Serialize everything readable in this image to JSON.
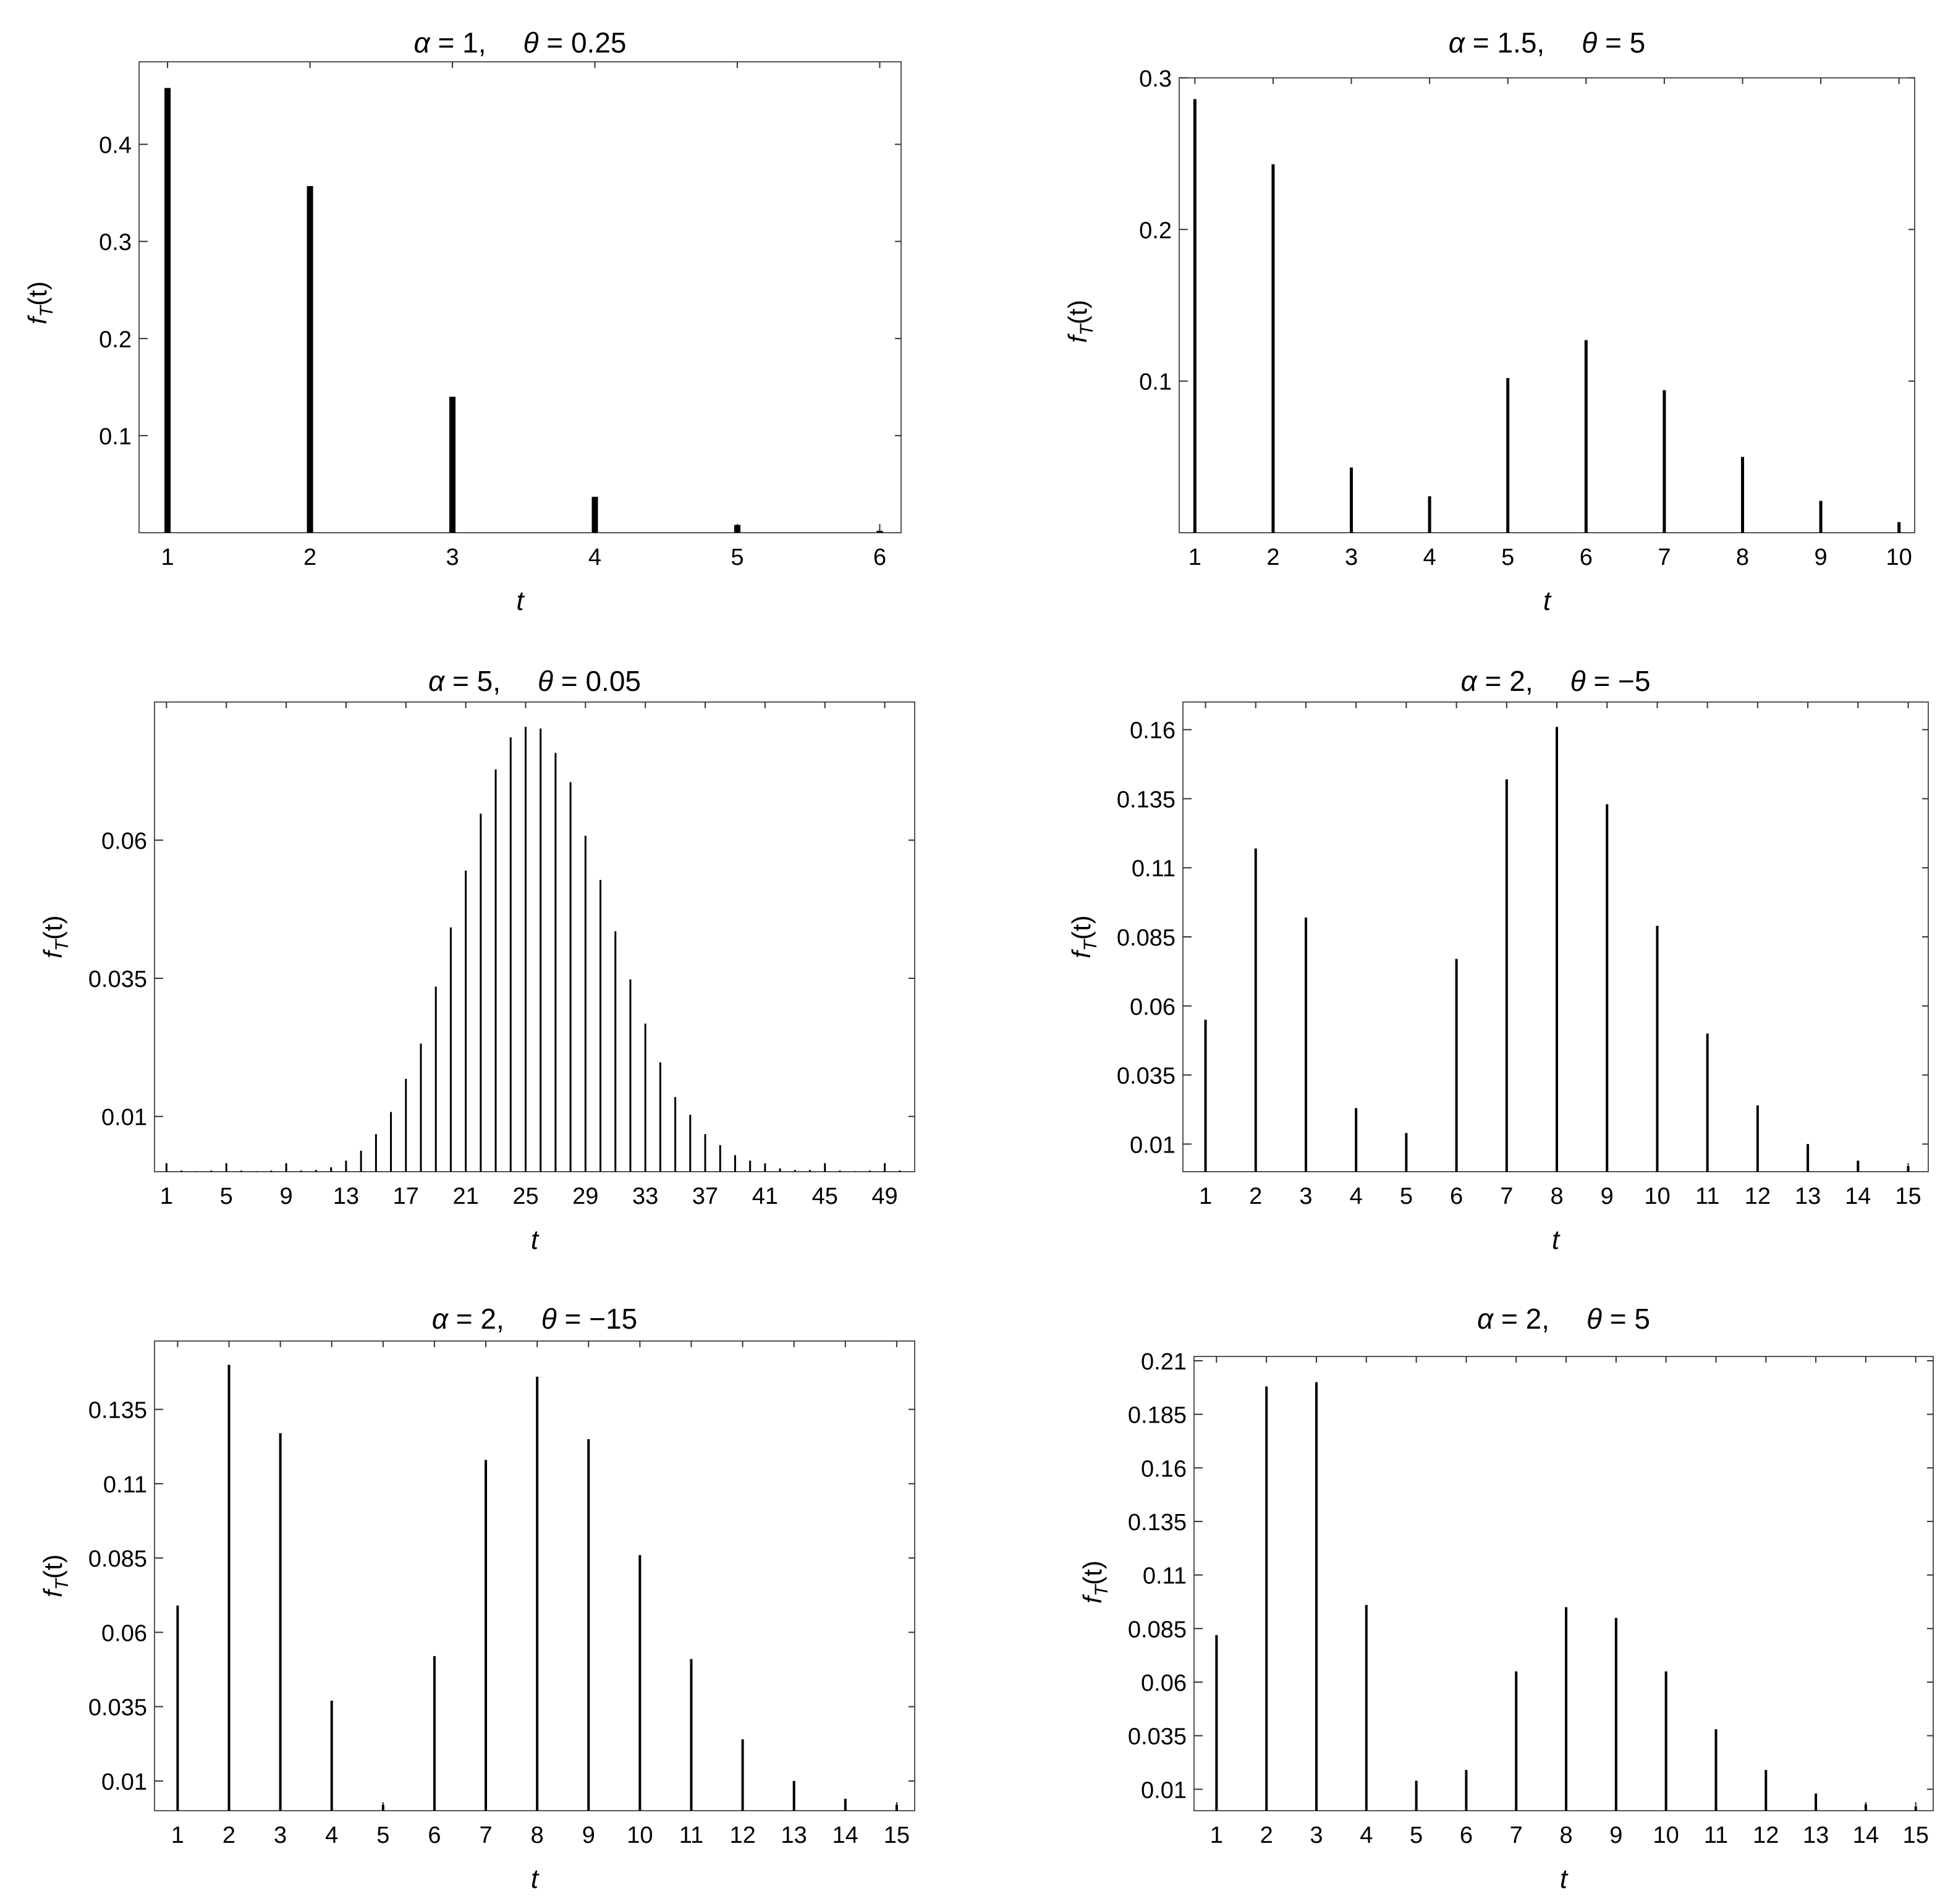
{
  "chart_data": [
    {
      "type": "bar",
      "title_alpha": "1",
      "title_theta": "0.25",
      "xlabel": "t",
      "ylabel_main": "f",
      "ylabel_sub": "T",
      "ylabel_arg": "(t)",
      "xlim": [
        0.8,
        6.15
      ],
      "ylim": [
        0,
        0.485
      ],
      "yticks": [
        0.1,
        0.2,
        0.3,
        0.4
      ],
      "ytick_labels": [
        "0.1",
        "0.2",
        "0.3",
        "0.4"
      ],
      "xticks": [
        1,
        2,
        3,
        4,
        5,
        6
      ],
      "xtick_labels": [
        "1",
        "2",
        "3",
        "4",
        "5",
        "6"
      ],
      "x": [
        1,
        2,
        3,
        4,
        5,
        6
      ],
      "values": [
        0.458,
        0.357,
        0.14,
        0.037,
        0.008,
        0.002
      ]
    },
    {
      "type": "bar",
      "title_alpha": "1.5",
      "title_theta": "5",
      "xlabel": "t",
      "ylabel_main": "f",
      "ylabel_sub": "T",
      "ylabel_arg": "(t)",
      "xlim": [
        0.8,
        10.2
      ],
      "ylim": [
        0,
        0.3
      ],
      "yticks": [
        0.1,
        0.2,
        0.3
      ],
      "ytick_labels": [
        "0.1",
        "0.2",
        "0.3"
      ],
      "xticks": [
        1,
        2,
        3,
        4,
        5,
        6,
        7,
        8,
        9,
        10
      ],
      "xtick_labels": [
        "1",
        "2",
        "3",
        "4",
        "5",
        "6",
        "7",
        "8",
        "9",
        "10"
      ],
      "x": [
        1,
        2,
        3,
        4,
        5,
        6,
        7,
        8,
        9,
        10
      ],
      "values": [
        0.286,
        0.243,
        0.043,
        0.024,
        0.102,
        0.127,
        0.094,
        0.05,
        0.021,
        0.007
      ]
    },
    {
      "type": "bar",
      "title_alpha": "5",
      "title_theta": "0.05",
      "xlabel": "t",
      "ylabel_main": "f",
      "ylabel_sub": "T",
      "ylabel_arg": "(t)",
      "xlim": [
        0.2,
        51.0
      ],
      "ylim": [
        0,
        0.085
      ],
      "yticks": [
        0.01,
        0.035,
        0.06
      ],
      "ytick_labels": [
        "0.01",
        "0.035",
        "0.06"
      ],
      "xticks": [
        1,
        5,
        9,
        13,
        17,
        21,
        25,
        29,
        33,
        37,
        41,
        45,
        49
      ],
      "xtick_labels": [
        "1",
        "5",
        "9",
        "13",
        "17",
        "21",
        "25",
        "29",
        "33",
        "37",
        "41",
        "45",
        "49"
      ],
      "x": [
        1,
        2,
        3,
        4,
        5,
        6,
        7,
        8,
        9,
        10,
        11,
        12,
        13,
        14,
        15,
        16,
        17,
        18,
        19,
        20,
        21,
        22,
        23,
        24,
        25,
        26,
        27,
        28,
        29,
        30,
        31,
        32,
        33,
        34,
        35,
        36,
        37,
        38,
        39,
        40,
        41,
        42,
        43,
        44,
        45,
        46,
        47,
        48,
        49,
        50
      ],
      "values": [
        0.0015,
        0.0002,
        0.0001,
        0.0002,
        0.0015,
        0.0002,
        0.0001,
        0.0002,
        0.0015,
        0.0002,
        0.0003,
        0.0008,
        0.002,
        0.0038,
        0.0068,
        0.0108,
        0.0168,
        0.0232,
        0.0335,
        0.0442,
        0.0545,
        0.0648,
        0.0728,
        0.0786,
        0.0805,
        0.0802,
        0.0758,
        0.0705,
        0.0608,
        0.0528,
        0.0435,
        0.0348,
        0.0268,
        0.0198,
        0.0135,
        0.0103,
        0.0068,
        0.0048,
        0.003,
        0.002,
        0.0014,
        0.0006,
        0.0003,
        0.0003,
        0.0015,
        0.0002,
        0.0001,
        0.0002,
        0.0015,
        0.0002
      ]
    },
    {
      "type": "bar",
      "title_alpha": "2",
      "title_theta": "−5",
      "xlabel": "t",
      "ylabel_main": "f",
      "ylabel_sub": "T",
      "ylabel_arg": "(t)",
      "xlim": [
        0.55,
        15.4
      ],
      "ylim": [
        0,
        0.17
      ],
      "yticks": [
        0.01,
        0.035,
        0.06,
        0.085,
        0.11,
        0.135,
        0.16
      ],
      "ytick_labels": [
        "0.01",
        "0.035",
        "0.06",
        "0.085",
        "0.11",
        "0.135",
        "0.16"
      ],
      "xticks": [
        1,
        2,
        3,
        4,
        5,
        6,
        7,
        8,
        9,
        10,
        11,
        12,
        13,
        14,
        15
      ],
      "xtick_labels": [
        "1",
        "2",
        "3",
        "4",
        "5",
        "6",
        "7",
        "8",
        "9",
        "10",
        "11",
        "12",
        "13",
        "14",
        "15"
      ],
      "x": [
        1,
        2,
        3,
        4,
        5,
        6,
        7,
        8,
        9,
        10,
        11,
        12,
        13,
        14,
        15
      ],
      "values": [
        0.055,
        0.117,
        0.092,
        0.023,
        0.014,
        0.077,
        0.142,
        0.161,
        0.133,
        0.089,
        0.05,
        0.024,
        0.01,
        0.004,
        0.002
      ]
    },
    {
      "type": "bar",
      "title_alpha": "2",
      "title_theta": "−15",
      "xlabel": "t",
      "ylabel_main": "f",
      "ylabel_sub": "T",
      "ylabel_arg": "(t)",
      "xlim": [
        0.55,
        15.35
      ],
      "ylim": [
        0,
        0.158
      ],
      "yticks": [
        0.01,
        0.035,
        0.06,
        0.085,
        0.11,
        0.135
      ],
      "ytick_labels": [
        "0.01",
        "0.035",
        "0.06",
        "0.085",
        "0.11",
        "0.135"
      ],
      "xticks": [
        1,
        2,
        3,
        4,
        5,
        6,
        7,
        8,
        9,
        10,
        11,
        12,
        13,
        14,
        15
      ],
      "xtick_labels": [
        "1",
        "2",
        "3",
        "4",
        "5",
        "6",
        "7",
        "8",
        "9",
        "10",
        "11",
        "12",
        "13",
        "14",
        "15"
      ],
      "x": [
        1,
        2,
        3,
        4,
        5,
        6,
        7,
        8,
        9,
        10,
        11,
        12,
        13,
        14,
        15
      ],
      "values": [
        0.069,
        0.15,
        0.127,
        0.037,
        0.002,
        0.052,
        0.118,
        0.146,
        0.125,
        0.086,
        0.051,
        0.024,
        0.01,
        0.004,
        0.002
      ]
    },
    {
      "type": "bar",
      "title_alpha": "2",
      "title_theta": "5",
      "xlabel": "t",
      "ylabel_main": "f",
      "ylabel_sub": "T",
      "ylabel_arg": "(t)",
      "xlim": [
        0.55,
        15.35
      ],
      "ylim": [
        0,
        0.212
      ],
      "yticks": [
        0.01,
        0.035,
        0.06,
        0.085,
        0.11,
        0.135,
        0.16,
        0.185,
        0.21
      ],
      "ytick_labels": [
        "0.01",
        "0.035",
        "0.06",
        "0.085",
        "0.11",
        "0.135",
        "0.16",
        "0.185",
        "0.21"
      ],
      "xticks": [
        1,
        2,
        3,
        4,
        5,
        6,
        7,
        8,
        9,
        10,
        11,
        12,
        13,
        14,
        15
      ],
      "xtick_labels": [
        "1",
        "2",
        "3",
        "4",
        "5",
        "6",
        "7",
        "8",
        "9",
        "10",
        "11",
        "12",
        "13",
        "14",
        "15"
      ],
      "x": [
        1,
        2,
        3,
        4,
        5,
        6,
        7,
        8,
        9,
        10,
        11,
        12,
        13,
        14,
        15
      ],
      "values": [
        0.082,
        0.198,
        0.2,
        0.096,
        0.014,
        0.019,
        0.065,
        0.095,
        0.09,
        0.065,
        0.038,
        0.019,
        0.008,
        0.003,
        0.002
      ]
    }
  ]
}
